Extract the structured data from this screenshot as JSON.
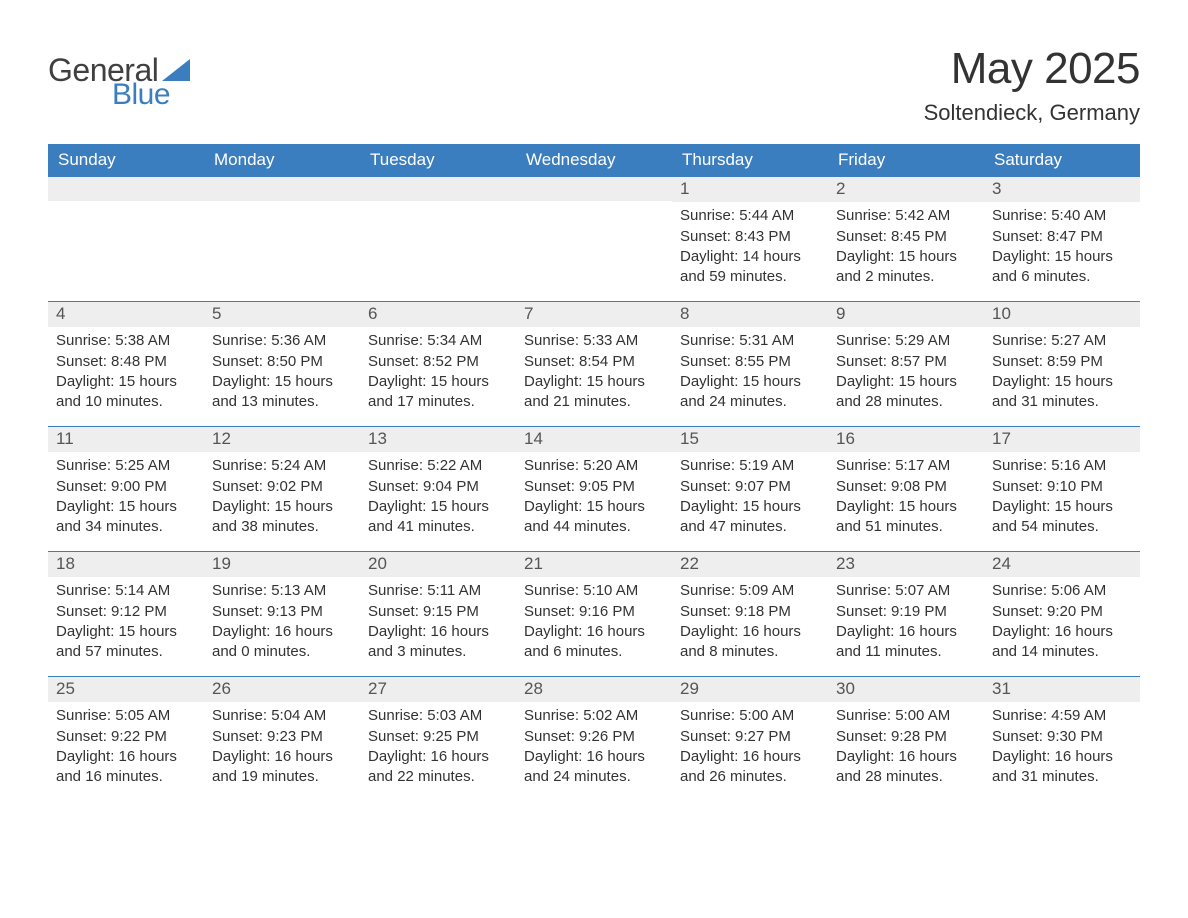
{
  "logo": {
    "text1": "General",
    "text2": "Blue",
    "sail_color": "#3b7ec0",
    "text1_color": "#404040"
  },
  "title": "May 2025",
  "location": "Soltendieck, Germany",
  "header_bg": "#3b7ec0",
  "header_fg": "#ffffff",
  "daynum_bg": "#eeeeee",
  "divider_color": "#3b7ec0",
  "body_text_color": "#333333",
  "weekdays": [
    "Sunday",
    "Monday",
    "Tuesday",
    "Wednesday",
    "Thursday",
    "Friday",
    "Saturday"
  ],
  "weeks": [
    [
      {
        "blank": true
      },
      {
        "blank": true
      },
      {
        "blank": true
      },
      {
        "blank": true
      },
      {
        "n": "1",
        "sunrise": "5:44 AM",
        "sunset": "8:43 PM",
        "daylight": "14 hours and 59 minutes."
      },
      {
        "n": "2",
        "sunrise": "5:42 AM",
        "sunset": "8:45 PM",
        "daylight": "15 hours and 2 minutes."
      },
      {
        "n": "3",
        "sunrise": "5:40 AM",
        "sunset": "8:47 PM",
        "daylight": "15 hours and 6 minutes."
      }
    ],
    [
      {
        "n": "4",
        "sunrise": "5:38 AM",
        "sunset": "8:48 PM",
        "daylight": "15 hours and 10 minutes."
      },
      {
        "n": "5",
        "sunrise": "5:36 AM",
        "sunset": "8:50 PM",
        "daylight": "15 hours and 13 minutes."
      },
      {
        "n": "6",
        "sunrise": "5:34 AM",
        "sunset": "8:52 PM",
        "daylight": "15 hours and 17 minutes."
      },
      {
        "n": "7",
        "sunrise": "5:33 AM",
        "sunset": "8:54 PM",
        "daylight": "15 hours and 21 minutes."
      },
      {
        "n": "8",
        "sunrise": "5:31 AM",
        "sunset": "8:55 PM",
        "daylight": "15 hours and 24 minutes."
      },
      {
        "n": "9",
        "sunrise": "5:29 AM",
        "sunset": "8:57 PM",
        "daylight": "15 hours and 28 minutes."
      },
      {
        "n": "10",
        "sunrise": "5:27 AM",
        "sunset": "8:59 PM",
        "daylight": "15 hours and 31 minutes."
      }
    ],
    [
      {
        "n": "11",
        "sunrise": "5:25 AM",
        "sunset": "9:00 PM",
        "daylight": "15 hours and 34 minutes."
      },
      {
        "n": "12",
        "sunrise": "5:24 AM",
        "sunset": "9:02 PM",
        "daylight": "15 hours and 38 minutes."
      },
      {
        "n": "13",
        "sunrise": "5:22 AM",
        "sunset": "9:04 PM",
        "daylight": "15 hours and 41 minutes."
      },
      {
        "n": "14",
        "sunrise": "5:20 AM",
        "sunset": "9:05 PM",
        "daylight": "15 hours and 44 minutes."
      },
      {
        "n": "15",
        "sunrise": "5:19 AM",
        "sunset": "9:07 PM",
        "daylight": "15 hours and 47 minutes."
      },
      {
        "n": "16",
        "sunrise": "5:17 AM",
        "sunset": "9:08 PM",
        "daylight": "15 hours and 51 minutes."
      },
      {
        "n": "17",
        "sunrise": "5:16 AM",
        "sunset": "9:10 PM",
        "daylight": "15 hours and 54 minutes."
      }
    ],
    [
      {
        "n": "18",
        "sunrise": "5:14 AM",
        "sunset": "9:12 PM",
        "daylight": "15 hours and 57 minutes."
      },
      {
        "n": "19",
        "sunrise": "5:13 AM",
        "sunset": "9:13 PM",
        "daylight": "16 hours and 0 minutes."
      },
      {
        "n": "20",
        "sunrise": "5:11 AM",
        "sunset": "9:15 PM",
        "daylight": "16 hours and 3 minutes."
      },
      {
        "n": "21",
        "sunrise": "5:10 AM",
        "sunset": "9:16 PM",
        "daylight": "16 hours and 6 minutes."
      },
      {
        "n": "22",
        "sunrise": "5:09 AM",
        "sunset": "9:18 PM",
        "daylight": "16 hours and 8 minutes."
      },
      {
        "n": "23",
        "sunrise": "5:07 AM",
        "sunset": "9:19 PM",
        "daylight": "16 hours and 11 minutes."
      },
      {
        "n": "24",
        "sunrise": "5:06 AM",
        "sunset": "9:20 PM",
        "daylight": "16 hours and 14 minutes."
      }
    ],
    [
      {
        "n": "25",
        "sunrise": "5:05 AM",
        "sunset": "9:22 PM",
        "daylight": "16 hours and 16 minutes."
      },
      {
        "n": "26",
        "sunrise": "5:04 AM",
        "sunset": "9:23 PM",
        "daylight": "16 hours and 19 minutes."
      },
      {
        "n": "27",
        "sunrise": "5:03 AM",
        "sunset": "9:25 PM",
        "daylight": "16 hours and 22 minutes."
      },
      {
        "n": "28",
        "sunrise": "5:02 AM",
        "sunset": "9:26 PM",
        "daylight": "16 hours and 24 minutes."
      },
      {
        "n": "29",
        "sunrise": "5:00 AM",
        "sunset": "9:27 PM",
        "daylight": "16 hours and 26 minutes."
      },
      {
        "n": "30",
        "sunrise": "5:00 AM",
        "sunset": "9:28 PM",
        "daylight": "16 hours and 28 minutes."
      },
      {
        "n": "31",
        "sunrise": "4:59 AM",
        "sunset": "9:30 PM",
        "daylight": "16 hours and 31 minutes."
      }
    ]
  ],
  "labels": {
    "sunrise": "Sunrise: ",
    "sunset": "Sunset: ",
    "daylight": "Daylight: "
  }
}
